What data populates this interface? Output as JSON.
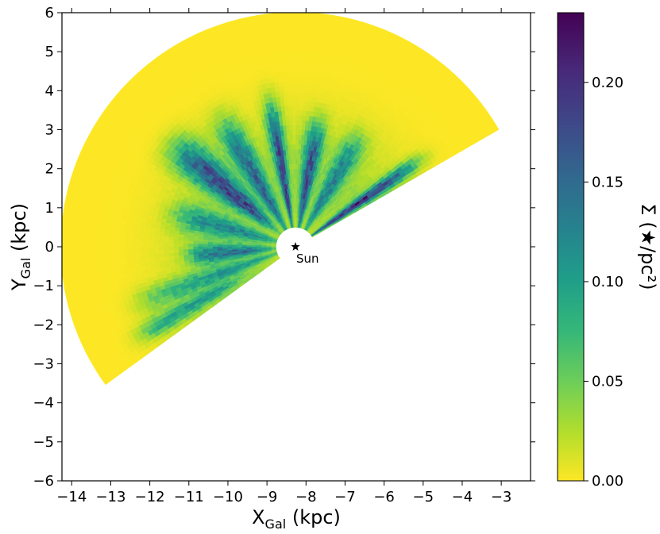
{
  "chart_data": {
    "type": "heatmap",
    "title": "",
    "xlabel": {
      "main": "X",
      "sub": "Gal",
      "unit": " (kpc)"
    },
    "ylabel": {
      "main": "Y",
      "sub": "Gal",
      "unit": " (kpc)"
    },
    "xlim": [
      -14.25,
      -2.25
    ],
    "ylim": [
      -6,
      6
    ],
    "xticks": [
      -14,
      -13,
      -12,
      -11,
      -10,
      -9,
      -8,
      -7,
      -6,
      -5,
      -4,
      -3
    ],
    "xtick_labels": [
      "−14",
      "−13",
      "−12",
      "−11",
      "−10",
      "−9",
      "−8",
      "−7",
      "−6",
      "−5",
      "−4",
      "−3"
    ],
    "yticks": [
      -6,
      -5,
      -4,
      -3,
      -2,
      -1,
      0,
      1,
      2,
      3,
      4,
      5,
      6
    ],
    "ytick_labels": [
      "−6",
      "−5",
      "−4",
      "−3",
      "−2",
      "−1",
      "0",
      "1",
      "2",
      "3",
      "4",
      "5",
      "6"
    ],
    "colorbar": {
      "label": "Σ (★/pc²)",
      "range": [
        0,
        0.235
      ],
      "ticks": [
        0,
        0.05,
        0.1,
        0.15,
        0.2
      ],
      "tick_labels": [
        "0.00",
        "0.05",
        "0.10",
        "0.15",
        "0.20"
      ],
      "colormap": "viridis_r",
      "colors": [
        "#fde725",
        "#5ec962",
        "#21918c",
        "#3b528b",
        "#440154"
      ]
    },
    "sun": {
      "x": -8.27,
      "y": 0.0,
      "label": "Sun"
    },
    "wedge": {
      "center": [
        -8.27,
        0.0
      ],
      "r_min": 0.5,
      "r_max": 6.0,
      "angle_min_deg": 30,
      "angle_max_deg": 216
    },
    "density_features": [
      {
        "angle_deg": 100,
        "width_deg": 6,
        "r_from": 0.5,
        "r_to": 3.5,
        "peak": 0.2
      },
      {
        "angle_deg": 80,
        "width_deg": 8,
        "r_from": 0.5,
        "r_to": 3.0,
        "peak": 0.19
      },
      {
        "angle_deg": 120,
        "width_deg": 10,
        "r_from": 0.5,
        "r_to": 3.5,
        "peak": 0.16
      },
      {
        "angle_deg": 140,
        "width_deg": 12,
        "r_from": 1.0,
        "r_to": 3.8,
        "peak": 0.21
      },
      {
        "angle_deg": 35,
        "width_deg": 5,
        "r_from": 0.5,
        "r_to": 3.5,
        "peak": 0.22
      },
      {
        "angle_deg": 165,
        "width_deg": 12,
        "r_from": 0.6,
        "r_to": 3.0,
        "peak": 0.12
      },
      {
        "angle_deg": 185,
        "width_deg": 10,
        "r_from": 0.8,
        "r_to": 2.5,
        "peak": 0.15
      },
      {
        "angle_deg": 200,
        "width_deg": 8,
        "r_from": 0.5,
        "r_to": 4.0,
        "peak": 0.1
      },
      {
        "angle_deg": 60,
        "width_deg": 10,
        "r_from": 0.6,
        "r_to": 3.0,
        "peak": 0.13
      },
      {
        "angle_deg": 210,
        "width_deg": 6,
        "r_from": 2.0,
        "r_to": 4.5,
        "peak": 0.11
      }
    ]
  }
}
